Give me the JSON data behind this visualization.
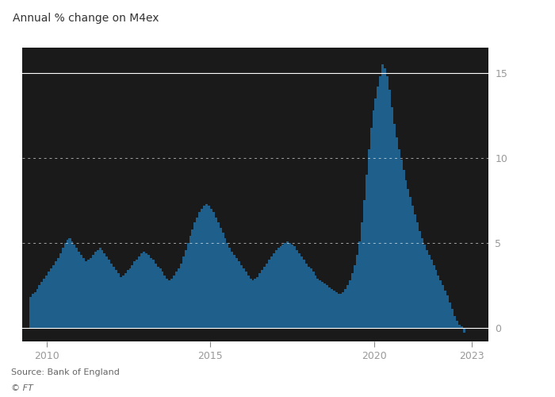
{
  "title": "Annual % change on M4ex",
  "source": "Source: Bank of England",
  "copyright": "© FT",
  "bar_color": "#1f5f8b",
  "background_color": "#ffffff",
  "plot_bg_color": "#1a1a1a",
  "grid_solid_color": "#ffffff",
  "grid_dot_color": "#ffffff",
  "text_color": "#333333",
  "tick_label_color": "#cccccc",
  "yticks": [
    0,
    5,
    10,
    15
  ],
  "ylim": [
    -0.8,
    16.5
  ],
  "xlim_start": 2009.25,
  "xlim_end": 2023.5,
  "xtick_labels": [
    "2010",
    "2015",
    "2020",
    "2023"
  ],
  "xtick_positions": [
    2010.0,
    2015.0,
    2020.0,
    2023.0
  ],
  "values": [
    1.8,
    2.0,
    2.1,
    2.3,
    2.5,
    2.7,
    2.9,
    3.1,
    3.3,
    3.5,
    3.7,
    3.9,
    4.1,
    4.4,
    4.7,
    5.0,
    5.2,
    5.3,
    5.1,
    4.9,
    4.7,
    4.5,
    4.3,
    4.1,
    3.9,
    4.0,
    4.1,
    4.3,
    4.5,
    4.6,
    4.7,
    4.6,
    4.4,
    4.2,
    4.0,
    3.8,
    3.6,
    3.4,
    3.2,
    3.0,
    3.1,
    3.2,
    3.4,
    3.5,
    3.7,
    3.9,
    4.0,
    4.2,
    4.4,
    4.5,
    4.4,
    4.3,
    4.1,
    4.0,
    3.8,
    3.6,
    3.5,
    3.3,
    3.1,
    2.9,
    2.8,
    2.9,
    3.1,
    3.3,
    3.5,
    3.8,
    4.2,
    4.6,
    5.0,
    5.4,
    5.8,
    6.2,
    6.5,
    6.8,
    7.0,
    7.2,
    7.3,
    7.2,
    7.0,
    6.8,
    6.5,
    6.2,
    5.9,
    5.6,
    5.3,
    5.0,
    4.7,
    4.5,
    4.3,
    4.1,
    3.9,
    3.7,
    3.5,
    3.3,
    3.1,
    2.9,
    2.8,
    2.9,
    3.0,
    3.2,
    3.4,
    3.6,
    3.8,
    4.0,
    4.2,
    4.4,
    4.6,
    4.7,
    4.8,
    4.9,
    5.0,
    5.1,
    5.0,
    4.9,
    4.8,
    4.6,
    4.4,
    4.2,
    4.0,
    3.8,
    3.6,
    3.5,
    3.3,
    3.1,
    2.9,
    2.8,
    2.7,
    2.6,
    2.5,
    2.4,
    2.3,
    2.2,
    2.1,
    2.0,
    2.0,
    2.1,
    2.3,
    2.5,
    2.8,
    3.2,
    3.7,
    4.3,
    5.1,
    6.2,
    7.5,
    9.0,
    10.5,
    11.8,
    12.8,
    13.5,
    14.2,
    14.8,
    15.5,
    15.3,
    14.8,
    14.0,
    13.0,
    12.0,
    11.2,
    10.5,
    9.9,
    9.3,
    8.7,
    8.2,
    7.7,
    7.2,
    6.7,
    6.2,
    5.7,
    5.3,
    4.9,
    4.6,
    4.3,
    4.0,
    3.7,
    3.4,
    3.1,
    2.8,
    2.5,
    2.2,
    1.9,
    1.5,
    1.1,
    0.7,
    0.4,
    0.2,
    0.1,
    -0.3
  ],
  "dotted_grid_values": [
    5,
    10
  ],
  "solid_grid_values": [
    0,
    15
  ]
}
